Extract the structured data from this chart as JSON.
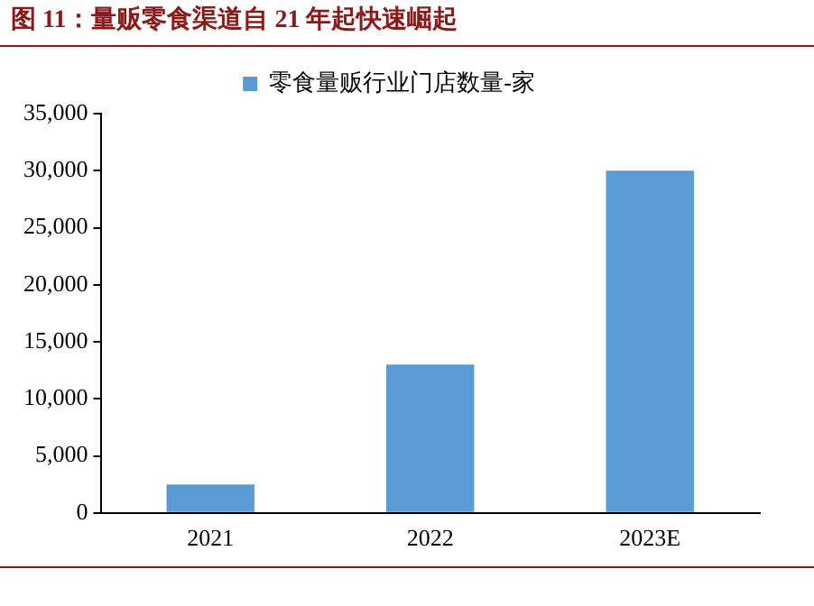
{
  "chart_data": {
    "type": "bar",
    "title": "图 11：量贩零食渠道自 21 年起快速崛起",
    "categories": [
      "2021",
      "2022",
      "2023E"
    ],
    "series": [
      {
        "name": "零食量贩行业门店数量-家",
        "color": "#5b9bd5",
        "values": [
          2500,
          13000,
          30000
        ]
      }
    ],
    "ylim": [
      0,
      35000
    ],
    "yticks": [
      0,
      {
        "value": 5000,
        "label": "5,000"
      },
      {
        "value": 10000,
        "label": "10,000"
      },
      {
        "value": 15000,
        "label": "15,000"
      },
      {
        "value": 20000,
        "label": "20,000"
      },
      {
        "value": 25000,
        "label": "25,000"
      },
      {
        "value": 30000,
        "label": "30,000"
      },
      {
        "value": 35000,
        "label": "35,000"
      }
    ],
    "grid": false,
    "legend": "top"
  }
}
